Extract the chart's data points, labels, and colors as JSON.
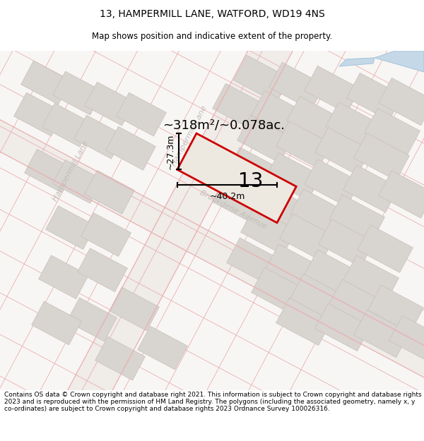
{
  "title": "13, HAMPERMILL LANE, WATFORD, WD19 4NS",
  "subtitle": "Map shows position and indicative extent of the property.",
  "footer": "Contains OS data © Crown copyright and database right 2021. This information is subject to Crown copyright and database rights 2023 and is reproduced with the permission of HM Land Registry. The polygons (including the associated geometry, namely x, y co-ordinates) are subject to Crown copyright and database rights 2023 Ordnance Survey 100026316.",
  "area_label": "~318m²/~0.078ac.",
  "width_label": "~40.2m",
  "height_label": "~27.3m",
  "number_label": "13",
  "map_bg": "#f7f5f3",
  "road_line_color": "#e8b0b0",
  "road_fill_color": "#f0ebe8",
  "plot_outline_color": "#cc0000",
  "plot_fill_color": "#ede8e0",
  "block_fill": "#d8d4cf",
  "block_outline": "#c8c0b8",
  "water_color": "#c5d8e8",
  "street_label_color": "#c0bcb8",
  "title_fontsize": 10,
  "subtitle_fontsize": 8.5,
  "footer_fontsize": 6.5,
  "number_fontsize": 20,
  "area_fontsize": 13,
  "dim_fontsize": 9
}
